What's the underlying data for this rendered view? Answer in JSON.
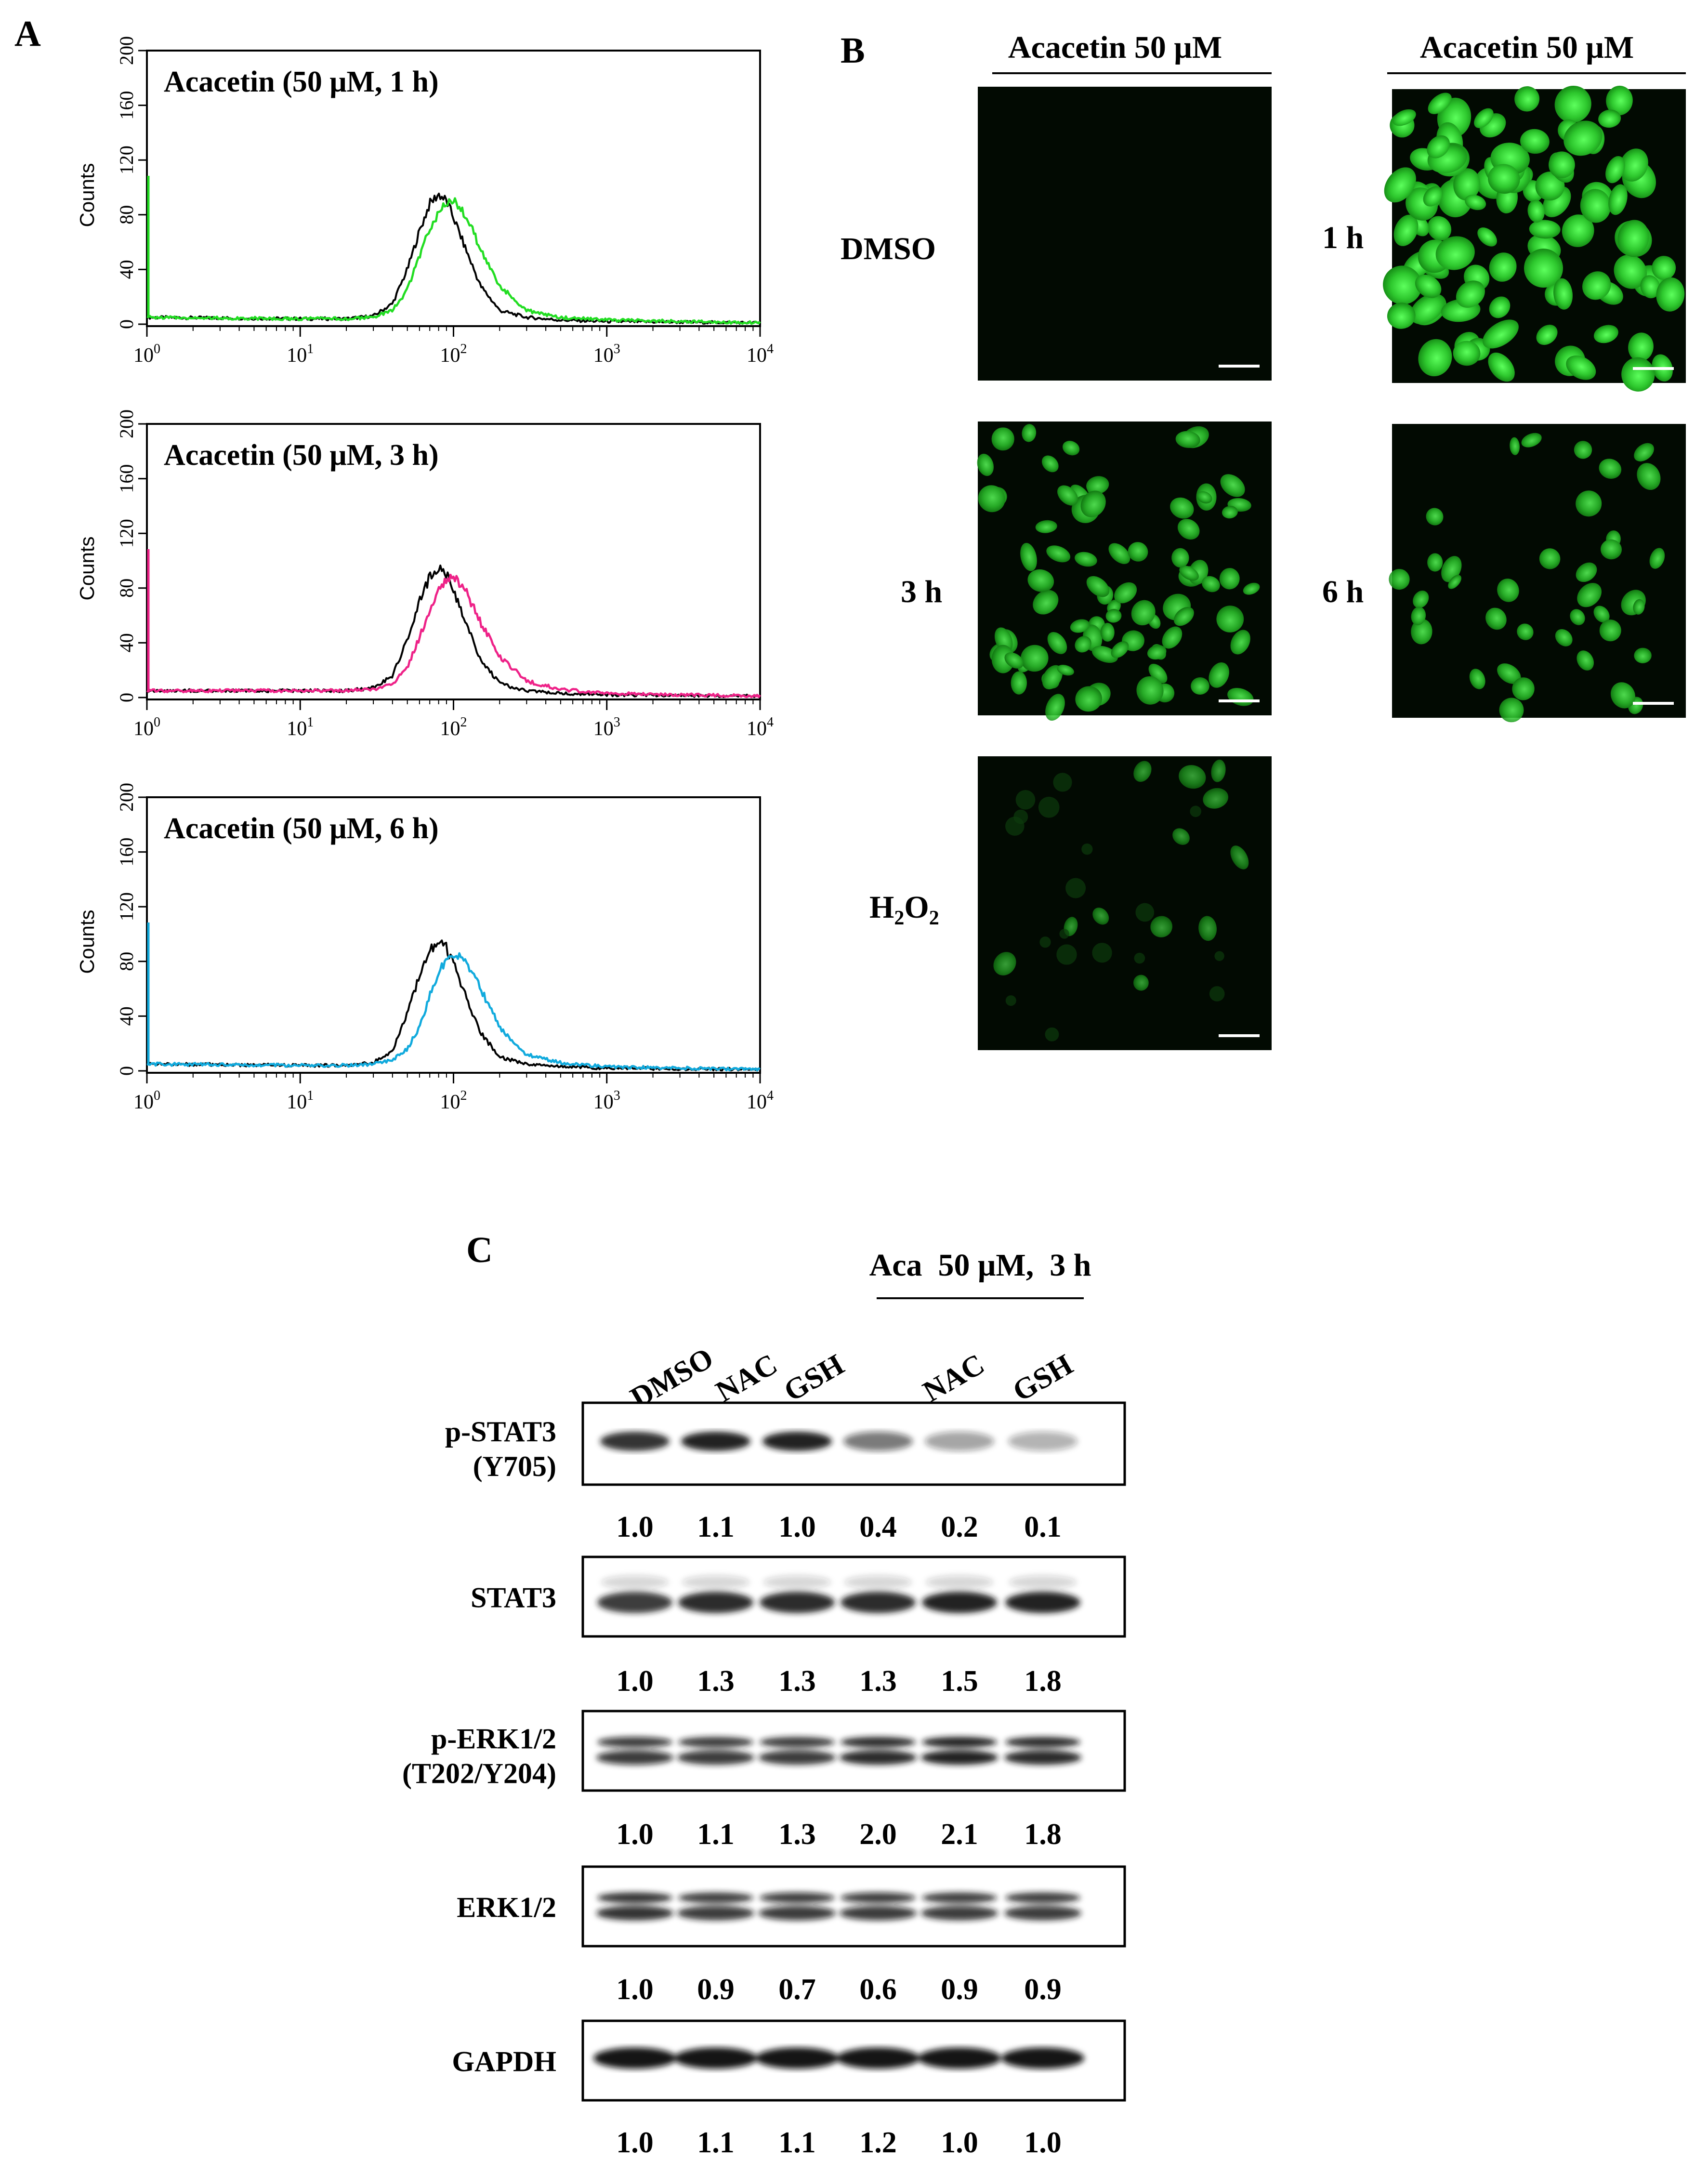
{
  "panels": {
    "A": {
      "label": "A",
      "y_axis_label": "Counts",
      "y_ticks": [
        "0",
        "40",
        "80",
        "120",
        "160",
        "200"
      ],
      "x_ticks": [
        {
          "base": "10",
          "exp": "0"
        },
        {
          "base": "10",
          "exp": "1"
        },
        {
          "base": "10",
          "exp": "2"
        },
        {
          "base": "10",
          "exp": "3"
        },
        {
          "base": "10",
          "exp": "4"
        }
      ],
      "plots": [
        {
          "title": "Acacetin (50 μM, 1 h)",
          "color": "#22dd22"
        },
        {
          "title": "Acacetin (50 μM, 3 h)",
          "color": "#ee2288"
        },
        {
          "title": "Acacetin (50 μM, 6 h)",
          "color": "#11aadd"
        }
      ]
    },
    "B": {
      "label": "B",
      "header_left": "Acacetin 50 μM",
      "header_right": "Acacetin 50 μM",
      "conditions": {
        "dmso": "DMSO",
        "h1": "1 h",
        "h3": "3 h",
        "h6": "6 h",
        "h2o2_main": "H",
        "h2o2_sub1": "2",
        "h2o2_mid": "O",
        "h2o2_sub2": "2"
      }
    },
    "C": {
      "label": "C",
      "group_header": "Aca  50 μM,  3 h",
      "lanes": [
        "DMSO",
        "NAC",
        "GSH",
        "NAC",
        "GSH"
      ],
      "blots": [
        {
          "name1": "p-STAT3",
          "name2": "(Y705)",
          "values": [
            "1.0",
            "1.1",
            "1.0",
            "0.4",
            "0.2",
            "0.1"
          ]
        },
        {
          "name1": "STAT3",
          "name2": "",
          "values": [
            "1.0",
            "1.3",
            "1.3",
            "1.3",
            "1.5",
            "1.8"
          ]
        },
        {
          "name1": "p-ERK1/2",
          "name2": "(T202/Y204)",
          "values": [
            "1.0",
            "1.1",
            "1.3",
            "2.0",
            "2.1",
            "1.8"
          ]
        },
        {
          "name1": "ERK1/2",
          "name2": "",
          "values": [
            "1.0",
            "0.9",
            "0.7",
            "0.6",
            "0.9",
            "0.9"
          ]
        },
        {
          "name1": "GAPDH",
          "name2": "",
          "values": [
            "1.0",
            "1.1",
            "1.1",
            "1.2",
            "1.0",
            "1.0"
          ]
        }
      ]
    }
  },
  "chart_data": [
    {
      "type": "line",
      "title": "Acacetin (50 μM, 1 h)",
      "ylabel": "Counts",
      "x_scale": "log",
      "xlim": [
        1,
        10000
      ],
      "ylim": [
        0,
        200
      ],
      "series": [
        {
          "color": "#000000",
          "x": [
            1,
            10,
            20,
            30,
            40,
            50,
            60,
            70,
            80,
            90,
            100,
            120,
            150,
            200,
            300,
            500,
            1000,
            10000
          ],
          "values": [
            5,
            4,
            4,
            6,
            15,
            40,
            68,
            88,
            95,
            90,
            78,
            55,
            28,
            10,
            5,
            3,
            2,
            1
          ]
        },
        {
          "color": "#22dd22",
          "x": [
            1,
            10,
            20,
            30,
            40,
            50,
            60,
            70,
            80,
            90,
            100,
            120,
            150,
            200,
            300,
            500,
            1000,
            10000
          ],
          "values": [
            5,
            4,
            4,
            5,
            10,
            25,
            50,
            70,
            82,
            90,
            90,
            80,
            55,
            28,
            10,
            5,
            3,
            1
          ]
        }
      ]
    },
    {
      "type": "line",
      "title": "Acacetin (50 μM, 3 h)",
      "ylabel": "Counts",
      "x_scale": "log",
      "xlim": [
        1,
        10000
      ],
      "ylim": [
        0,
        200
      ],
      "series": [
        {
          "color": "#000000",
          "x": [
            1,
            10,
            20,
            30,
            40,
            50,
            60,
            70,
            80,
            90,
            100,
            120,
            150,
            200,
            300,
            500,
            1000,
            10000
          ],
          "values": [
            5,
            5,
            5,
            7,
            16,
            42,
            70,
            88,
            95,
            90,
            78,
            55,
            28,
            10,
            5,
            3,
            2,
            1
          ]
        },
        {
          "color": "#ee2288",
          "x": [
            1,
            10,
            20,
            30,
            40,
            50,
            60,
            70,
            80,
            90,
            100,
            120,
            150,
            200,
            300,
            500,
            1000,
            10000
          ],
          "values": [
            5,
            5,
            5,
            6,
            10,
            22,
            44,
            64,
            78,
            86,
            88,
            78,
            55,
            30,
            12,
            6,
            3,
            1
          ]
        }
      ]
    },
    {
      "type": "line",
      "title": "Acacetin (50 μM, 6 h)",
      "ylabel": "Counts",
      "x_scale": "log",
      "xlim": [
        1,
        10000
      ],
      "ylim": [
        0,
        200
      ],
      "series": [
        {
          "color": "#000000",
          "x": [
            1,
            10,
            20,
            30,
            40,
            50,
            60,
            70,
            80,
            90,
            100,
            120,
            150,
            200,
            300,
            500,
            1000,
            10000
          ],
          "values": [
            5,
            4,
            4,
            6,
            15,
            42,
            70,
            88,
            95,
            90,
            78,
            55,
            28,
            10,
            5,
            3,
            2,
            1
          ]
        },
        {
          "color": "#11aadd",
          "x": [
            1,
            10,
            20,
            30,
            40,
            50,
            60,
            70,
            80,
            90,
            100,
            120,
            150,
            200,
            300,
            500,
            1000,
            10000
          ],
          "values": [
            5,
            4,
            4,
            5,
            8,
            16,
            32,
            55,
            72,
            82,
            86,
            80,
            60,
            32,
            12,
            6,
            3,
            1
          ]
        }
      ]
    }
  ]
}
